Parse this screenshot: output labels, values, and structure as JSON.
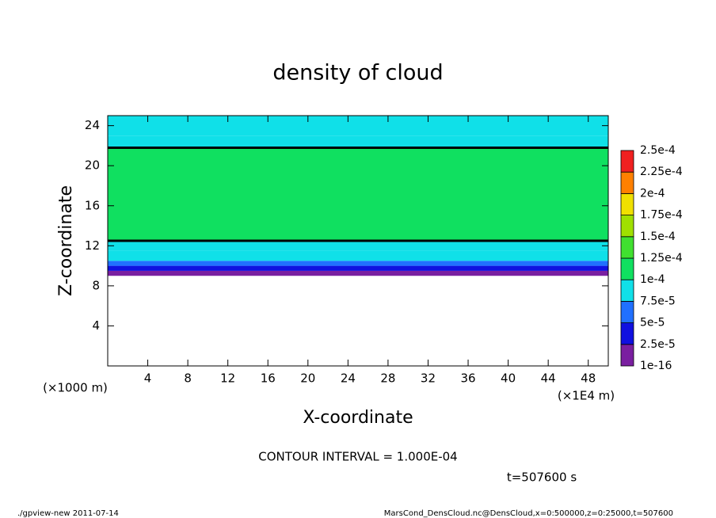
{
  "chart_data": {
    "type": "heatmap",
    "title": "density of cloud",
    "x_label": "X-coordinate",
    "y_label": "Z-coordinate",
    "x_unit": "(×1E4 m)",
    "y_unit": "(×1000 m)",
    "xlim": [
      0,
      50
    ],
    "xticks": [
      4,
      8,
      12,
      16,
      20,
      24,
      28,
      32,
      36,
      40,
      44,
      48
    ],
    "ylim": [
      0,
      25
    ],
    "yticks": [
      4,
      8,
      12,
      16,
      20,
      24
    ],
    "z_bins": [
      9,
      9.5,
      10,
      10.5,
      11.5,
      12.5,
      21.8,
      23,
      25
    ],
    "values": [
      1.2e-05,
      3.5e-05,
      6e-05,
      8.5e-05,
      9.5e-05,
      0.00011,
      9e-05,
      8e-05
    ],
    "contour_interval": 0.0001,
    "contour_text": "CONTOUR INTERVAL = 1.000E-04",
    "time_text": "t=507600 s",
    "colorbar": {
      "levels": [
        {
          "value": 1e-16,
          "label": "1e-16"
        },
        {
          "value": 2.5e-05,
          "label": "2.5e-5"
        },
        {
          "value": 5e-05,
          "label": "5e-5"
        },
        {
          "value": 7.5e-05,
          "label": "7.5e-5"
        },
        {
          "value": 0.0001,
          "label": "1e-4"
        },
        {
          "value": 0.000125,
          "label": "1.25e-4"
        },
        {
          "value": 0.00015,
          "label": "1.5e-4"
        },
        {
          "value": 0.000175,
          "label": "1.75e-4"
        },
        {
          "value": 0.0002,
          "label": "2e-4"
        },
        {
          "value": 0.000225,
          "label": "2.25e-4"
        },
        {
          "value": 0.00025,
          "label": "2.5e-4"
        }
      ],
      "colors": [
        "#7a1fa0",
        "#1010e0",
        "#2070ff",
        "#10e0e8",
        "#10e060",
        "#40e030",
        "#a0e000",
        "#f0e000",
        "#ff8000",
        "#f02020"
      ]
    },
    "footer_left": "./gpview-new  2011-07-14",
    "footer_right": "MarsCond_DensCloud.nc@DensCloud,x=0:500000,z=0:25000,t=507600"
  }
}
